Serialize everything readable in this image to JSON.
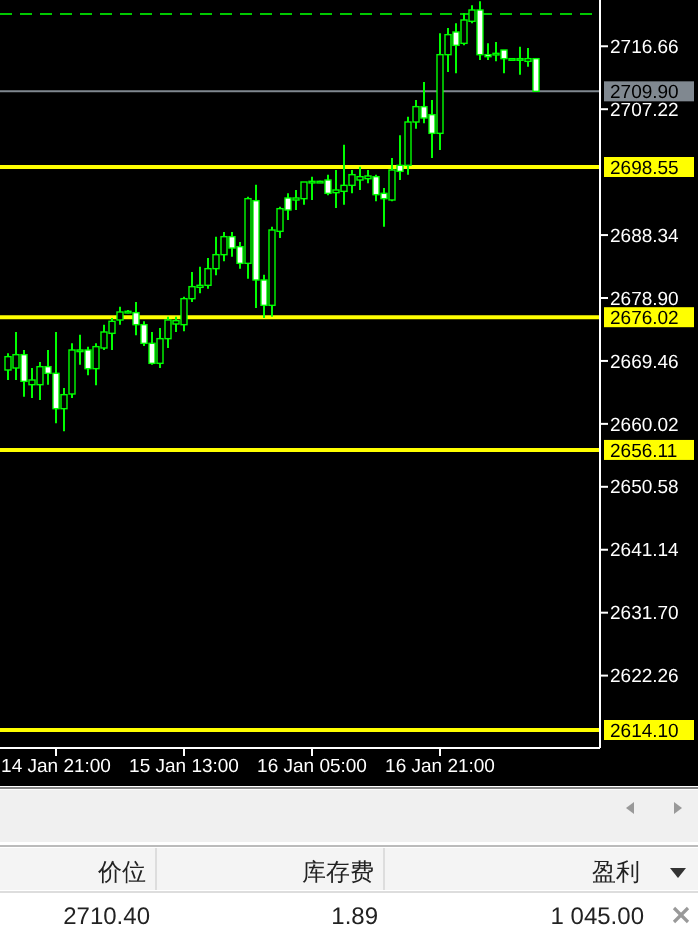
{
  "chart_data": {
    "type": "candlestick",
    "color": "#00ff00",
    "categories": [
      null,
      null,
      null,
      null,
      null,
      null,
      "14 Jan 21:00",
      null,
      null,
      null,
      null,
      null,
      null,
      null,
      null,
      null,
      null,
      null,
      null,
      null,
      null,
      null,
      "15 Jan 13:00",
      null,
      null,
      null,
      null,
      null,
      null,
      null,
      null,
      null,
      null,
      null,
      null,
      null,
      null,
      null,
      "16 Jan 05:00",
      null,
      null,
      null,
      null,
      null,
      null,
      null,
      null,
      null,
      null,
      null,
      null,
      null,
      null,
      null,
      "16 Jan 21:00",
      null,
      null,
      null,
      null,
      null,
      null,
      null,
      null,
      null,
      null,
      null,
      null
    ],
    "ohlc": [
      [
        2668.1,
        2670.6,
        2666.6,
        2670.1
      ],
      [
        2668.4,
        2673.8,
        2666.6,
        2670.4
      ],
      [
        2670.4,
        2671.1,
        2664.1,
        2666.4
      ],
      [
        2665.9,
        2668.4,
        2663.9,
        2666.6
      ],
      [
        2665.9,
        2669.3,
        2663.6,
        2668.6
      ],
      [
        2668.6,
        2671.1,
        2665.9,
        2667.6
      ],
      [
        2667.6,
        2673.8,
        2660.1,
        2662.3
      ],
      [
        2662.3,
        2665.4,
        2658.9,
        2664.4
      ],
      [
        2664.5,
        2672.1,
        2663.9,
        2671.1
      ],
      [
        2670.9,
        2673.4,
        2668.9,
        2671.1
      ],
      [
        2671.1,
        2671.6,
        2667.3,
        2668.3
      ],
      [
        2668.3,
        2672.1,
        2665.8,
        2671.6
      ],
      [
        2671.4,
        2674.9,
        2671.1,
        2673.8
      ],
      [
        2673.6,
        2675.9,
        2671.1,
        2675.4
      ],
      [
        2675.6,
        2677.6,
        2674.9,
        2676.8
      ],
      [
        2676.7,
        2677.1,
        2676.6,
        2676.9
      ],
      [
        2676.7,
        2678.3,
        2673.3,
        2674.9
      ],
      [
        2674.9,
        2675.4,
        2671.7,
        2672.1
      ],
      [
        2672.1,
        2673.8,
        2668.9,
        2669.1
      ],
      [
        2669.1,
        2674.4,
        2668.4,
        2672.8
      ],
      [
        2672.8,
        2676.1,
        2671.4,
        2675.6
      ],
      [
        2675.0,
        2676.1,
        2673.8,
        2675.5
      ],
      [
        2674.9,
        2679.1,
        2673.9,
        2678.8
      ],
      [
        2678.8,
        2682.8,
        2678.3,
        2680.6
      ],
      [
        2680.5,
        2683.6,
        2679.6,
        2680.8
      ],
      [
        2680.8,
        2684.9,
        2680.3,
        2683.3
      ],
      [
        2683.3,
        2688.1,
        2682.3,
        2685.4
      ],
      [
        2685.4,
        2688.8,
        2684.4,
        2688.1
      ],
      [
        2688.1,
        2688.8,
        2685.1,
        2686.4
      ],
      [
        2686.6,
        2687.3,
        2683.3,
        2684.1
      ],
      [
        2684.1,
        2694.1,
        2681.8,
        2693.8
      ],
      [
        2693.5,
        2695.9,
        2677.4,
        2681.6
      ],
      [
        2681.6,
        2682.4,
        2675.9,
        2677.8
      ],
      [
        2677.8,
        2689.6,
        2676.1,
        2689.1
      ],
      [
        2688.9,
        2692.6,
        2687.9,
        2692.3
      ],
      [
        2693.9,
        2694.6,
        2690.6,
        2692.1
      ],
      [
        2693.6,
        2695.1,
        2692.1,
        2693.9
      ],
      [
        2693.8,
        2696.3,
        2692.9,
        2696.3
      ],
      [
        2696.2,
        2697.1,
        2693.6,
        2696.4
      ],
      [
        2696.3,
        2696.5,
        2696.2,
        2696.4
      ],
      [
        2696.6,
        2697.4,
        2694.3,
        2694.6
      ],
      [
        2694.7,
        2698.1,
        2692.4,
        2695.1
      ],
      [
        2694.9,
        2701.9,
        2692.9,
        2695.8
      ],
      [
        2695.8,
        2698.1,
        2694.6,
        2697.4
      ],
      [
        2696.6,
        2698.6,
        2695.1,
        2697.1
      ],
      [
        2696.8,
        2698.1,
        2696.1,
        2697.2
      ],
      [
        2697.1,
        2697.4,
        2693.4,
        2694.4
      ],
      [
        2694.6,
        2695.4,
        2689.6,
        2693.8
      ],
      [
        2693.6,
        2699.9,
        2693.4,
        2698.1
      ],
      [
        2698.8,
        2703.3,
        2696.6,
        2697.9
      ],
      [
        2698.8,
        2706.1,
        2697.4,
        2705.3
      ],
      [
        2705.3,
        2708.6,
        2704.3,
        2707.6
      ],
      [
        2707.6,
        2711.3,
        2705.1,
        2705.9
      ],
      [
        2706.4,
        2708.6,
        2699.9,
        2703.6
      ],
      [
        2703.6,
        2718.6,
        2701.1,
        2715.4
      ],
      [
        2715.4,
        2719.4,
        2712.8,
        2718.4
      ],
      [
        2718.8,
        2720.1,
        2712.6,
        2716.8
      ],
      [
        2717.1,
        2721.6,
        2716.8,
        2720.6
      ],
      [
        2720.4,
        2722.8,
        2720.1,
        2722.1
      ],
      [
        2722.1,
        2723.4,
        2714.6,
        2715.4
      ],
      [
        2715.4,
        2717.1,
        2714.6,
        2715.1
      ],
      [
        2715.4,
        2717.3,
        2714.4,
        2715.6
      ],
      [
        2716.1,
        2716.1,
        2712.6,
        2714.8
      ],
      [
        2714.7,
        2714.8,
        2714.7,
        2714.8
      ],
      [
        2714.6,
        2716.6,
        2712.4,
        2714.8
      ],
      [
        2714.4,
        2716.4,
        2713.6,
        2714.8
      ],
      [
        2714.8,
        2714.8,
        2709.9,
        2709.9
      ]
    ],
    "ylim": [
      2611.4,
      2723.6
    ],
    "yticks": [
      2716.66,
      2707.22,
      2688.34,
      {
        "value": 2678.9,
        "label": "2678.90"
      },
      2669.46,
      2660.02,
      2650.58,
      2641.14,
      {
        "value": 2631.7,
        "label": "2631.70"
      },
      2622.26
    ],
    "ref_lines": [
      {
        "axis": "y",
        "value": 2721.5,
        "color": "#00c800",
        "line_style": "dashed"
      },
      {
        "axis": "y",
        "value": 2709.9,
        "label": "2709.90",
        "color": "#808890"
      },
      {
        "axis": "y",
        "value": 2698.55,
        "label": "2698.55",
        "color": "#ffff00"
      },
      {
        "axis": "y",
        "value": 2676.02,
        "label": "2676.02",
        "color": "#ffff00"
      },
      {
        "axis": "y",
        "value": 2656.11,
        "label": "2656.11",
        "color": "#ffff00"
      },
      {
        "axis": "y",
        "value": 2614.1,
        "label": "2614.10",
        "color": "#ffff00"
      }
    ],
    "annotations": [
      "价位",
      "库存费",
      "盈利",
      "2710.40",
      "1.89",
      "1 045.00"
    ]
  }
}
